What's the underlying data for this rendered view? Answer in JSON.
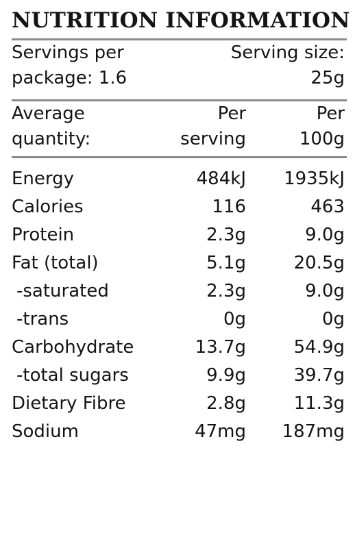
{
  "panel": {
    "title": "NUTRITION INFORMATION",
    "servings_line1": "Servings per",
    "servings_line2": "package: 1.6",
    "size_line1": "Serving size:",
    "size_line2": "25g",
    "header_label_line1": "Average",
    "header_label_line2": "quantity:",
    "header_col1_line1": "Per",
    "header_col1_line2": "serving",
    "header_col2_line1": "Per",
    "header_col2_line2": "100g"
  },
  "rows": [
    {
      "label": "Energy",
      "per_serving": "484kJ",
      "per_100g": "1935kJ",
      "indent": false
    },
    {
      "label": "Calories",
      "per_serving": "116",
      "per_100g": "463",
      "indent": false
    },
    {
      "label": "Protein",
      "per_serving": "2.3g",
      "per_100g": "9.0g",
      "indent": false
    },
    {
      "label": "Fat (total)",
      "per_serving": "5.1g",
      "per_100g": "20.5g",
      "indent": false
    },
    {
      "label": "-saturated",
      "per_serving": "2.3g",
      "per_100g": "9.0g",
      "indent": true
    },
    {
      "label": "-trans",
      "per_serving": "0g",
      "per_100g": "0g",
      "indent": true
    },
    {
      "label": "Carbohydrate",
      "per_serving": "13.7g",
      "per_100g": "54.9g",
      "indent": false
    },
    {
      "label": "-total sugars",
      "per_serving": "9.9g",
      "per_100g": "39.7g",
      "indent": true
    },
    {
      "label": "Dietary Fibre",
      "per_serving": "2.8g",
      "per_100g": "11.3g",
      "indent": false
    },
    {
      "label": "Sodium",
      "per_serving": "47mg",
      "per_100g": "187mg",
      "indent": false
    }
  ]
}
